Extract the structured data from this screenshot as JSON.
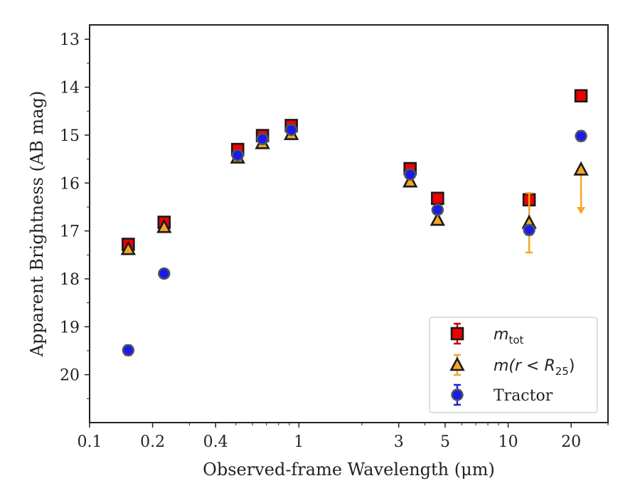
{
  "chart_data": {
    "type": "scatter",
    "xlabel": "Observed-frame Wavelength (μm)",
    "ylabel": "Apparent Brightness (AB mag)",
    "x_scale": "log",
    "xlim": [
      0.1,
      30
    ],
    "ylim": [
      21,
      12.7
    ],
    "y_inverted": true,
    "x_ticks": [
      {
        "value": 0.1,
        "label": "0.1"
      },
      {
        "value": 0.2,
        "label": "0.2"
      },
      {
        "value": 0.4,
        "label": "0.4"
      },
      {
        "value": 1,
        "label": "1"
      },
      {
        "value": 3,
        "label": "3"
      },
      {
        "value": 5,
        "label": "5"
      },
      {
        "value": 10,
        "label": "10"
      },
      {
        "value": 20,
        "label": "20"
      }
    ],
    "y_ticks": [
      13,
      14,
      15,
      16,
      17,
      18,
      19,
      20
    ],
    "grid": false,
    "legend_position": "lower-right",
    "series": [
      {
        "name": "m_tot",
        "legend_main": "m",
        "legend_sub": "tot",
        "marker": "square",
        "color": "#ee0000",
        "errcolor": "#cc0000",
        "points": [
          {
            "x": 0.153,
            "y": 17.28,
            "err": 0.05
          },
          {
            "x": 0.227,
            "y": 16.82,
            "err": 0.05
          },
          {
            "x": 0.51,
            "y": 15.3,
            "err": 0.03
          },
          {
            "x": 0.67,
            "y": 15.01,
            "err": 0.03
          },
          {
            "x": 0.92,
            "y": 14.8,
            "err": 0.03
          },
          {
            "x": 3.4,
            "y": 15.7,
            "err": 0.03
          },
          {
            "x": 4.6,
            "y": 16.32,
            "err": 0.04
          },
          {
            "x": 12.6,
            "y": 16.35,
            "err": 0.05
          },
          {
            "x": 22.3,
            "y": 14.18,
            "err": 0.04
          }
        ]
      },
      {
        "name": "m(r < R25)",
        "legend_main": "m(r < R",
        "legend_sub": "25",
        "legend_tail": ")",
        "marker": "triangle",
        "color": "#f5a623",
        "errcolor": "#f5a623",
        "points": [
          {
            "x": 0.153,
            "y": 17.38,
            "err": 0.03
          },
          {
            "x": 0.227,
            "y": 16.92,
            "err": 0.03
          },
          {
            "x": 0.51,
            "y": 15.47,
            "err": 0.03
          },
          {
            "x": 0.67,
            "y": 15.17,
            "err": 0.03
          },
          {
            "x": 0.92,
            "y": 14.98,
            "err": 0.03
          },
          {
            "x": 3.4,
            "y": 15.97,
            "err": 0.03
          },
          {
            "x": 4.6,
            "y": 16.77,
            "err": 0.03
          },
          {
            "x": 12.6,
            "y": 16.83,
            "err": 0.62
          },
          {
            "x": 22.3,
            "y": 15.72,
            "upper_limit": true,
            "limit_to": 16.62
          }
        ]
      },
      {
        "name": "Tractor",
        "marker": "circle",
        "color": "#1a1aee",
        "errcolor": "#2222dd",
        "points": [
          {
            "x": 0.153,
            "y": 19.49,
            "err": 0.1
          },
          {
            "x": 0.227,
            "y": 17.89,
            "err": 0.08
          },
          {
            "x": 0.51,
            "y": 15.42,
            "err": 0.03
          },
          {
            "x": 0.67,
            "y": 15.08,
            "err": 0.03
          },
          {
            "x": 0.92,
            "y": 14.89,
            "err": 0.03
          },
          {
            "x": 3.4,
            "y": 15.82,
            "err": 0.05
          },
          {
            "x": 4.6,
            "y": 16.56,
            "err": 0.08
          },
          {
            "x": 12.6,
            "y": 16.98,
            "err": 0.1
          },
          {
            "x": 22.3,
            "y": 15.02,
            "err": 0.1
          }
        ]
      }
    ]
  }
}
